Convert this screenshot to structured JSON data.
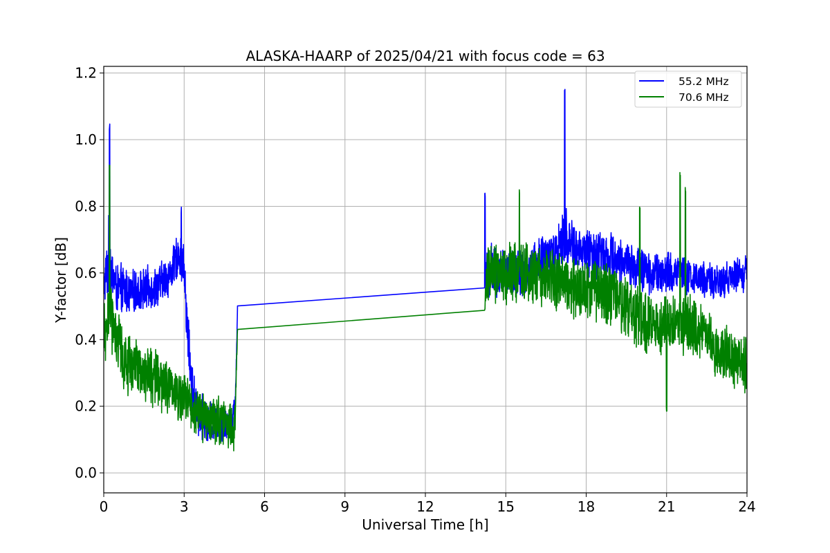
{
  "chart_data": {
    "type": "line",
    "title": "ALASKA-HAARP of 2025/04/21 with focus code = 63",
    "xlabel": "Universal Time [h]",
    "ylabel": "Y-factor [dB]",
    "xlim": [
      0,
      24
    ],
    "ylim": [
      -0.06,
      1.22
    ],
    "xticks": [
      0,
      3,
      6,
      9,
      12,
      15,
      18,
      21,
      24
    ],
    "yticks": [
      0.0,
      0.2,
      0.4,
      0.6,
      0.8,
      1.0,
      1.2
    ],
    "xtick_labels": [
      "0",
      "3",
      "6",
      "9",
      "12",
      "15",
      "18",
      "21",
      "24"
    ],
    "ytick_labels": [
      "0.0",
      "0.2",
      "0.4",
      "0.6",
      "0.8",
      "1.0",
      "1.2"
    ],
    "grid": true,
    "legend_position": "top-right",
    "series": [
      {
        "name": "55.2 MHz",
        "color": "#0000ff",
        "x": [
          0,
          0.1,
          0.2,
          0.3,
          0.5,
          0.8,
          1.0,
          1.5,
          2.0,
          2.5,
          2.8,
          3.0,
          3.1,
          3.3,
          3.5,
          4.0,
          4.5,
          4.9,
          5.0,
          14.2,
          14.3,
          14.5,
          15.0,
          15.5,
          16.0,
          16.5,
          17.0,
          17.2,
          17.5,
          18.0,
          18.5,
          19.0,
          19.5,
          20.0,
          20.5,
          21.0,
          21.5,
          22.0,
          22.5,
          23.0,
          23.5,
          24.0
        ],
        "y": [
          0.55,
          0.6,
          0.65,
          0.6,
          0.55,
          0.55,
          0.54,
          0.55,
          0.56,
          0.6,
          0.66,
          0.62,
          0.45,
          0.25,
          0.18,
          0.15,
          0.15,
          0.17,
          0.53,
          0.555,
          0.62,
          0.6,
          0.6,
          0.6,
          0.62,
          0.65,
          0.68,
          0.72,
          0.68,
          0.66,
          0.66,
          0.65,
          0.63,
          0.61,
          0.6,
          0.6,
          0.6,
          0.58,
          0.58,
          0.57,
          0.59,
          0.6
        ],
        "amp": [
          0.06,
          0.08,
          0.12,
          0.08,
          0.07,
          0.07,
          0.06,
          0.06,
          0.06,
          0.06,
          0.06,
          0.07,
          0.09,
          0.07,
          0.06,
          0.06,
          0.06,
          0.06,
          0,
          0,
          0.08,
          0.08,
          0.07,
          0.07,
          0.07,
          0.07,
          0.07,
          0.1,
          0.07,
          0.07,
          0.07,
          0.07,
          0.06,
          0.06,
          0.06,
          0.06,
          0.05,
          0.05,
          0.05,
          0.05,
          0.05,
          0.05
        ],
        "gap": [
          5.0,
          14.2
        ],
        "spikes": [
          [
            0.22,
            1.05
          ],
          [
            17.2,
            1.16
          ],
          [
            14.22,
            0.84
          ],
          [
            2.9,
            0.8
          ]
        ]
      },
      {
        "name": "70.6 MHz",
        "color": "#008000",
        "x": [
          0,
          0.1,
          0.2,
          0.3,
          0.5,
          0.8,
          1.0,
          1.5,
          2.0,
          2.5,
          3.0,
          3.5,
          4.0,
          4.5,
          4.9,
          5.0,
          14.2,
          14.3,
          15.0,
          15.5,
          16.0,
          16.5,
          17.0,
          17.5,
          18.0,
          18.5,
          19.0,
          19.5,
          20.0,
          20.5,
          21.0,
          21.5,
          22.0,
          22.5,
          23.0,
          23.5,
          24.0
        ],
        "y": [
          0.4,
          0.42,
          0.5,
          0.45,
          0.38,
          0.34,
          0.32,
          0.3,
          0.28,
          0.25,
          0.22,
          0.18,
          0.16,
          0.15,
          0.14,
          0.46,
          0.475,
          0.6,
          0.6,
          0.6,
          0.6,
          0.59,
          0.58,
          0.56,
          0.55,
          0.55,
          0.53,
          0.5,
          0.47,
          0.44,
          0.44,
          0.45,
          0.44,
          0.4,
          0.36,
          0.34,
          0.32
        ],
        "amp": [
          0.09,
          0.1,
          0.12,
          0.1,
          0.09,
          0.09,
          0.08,
          0.08,
          0.08,
          0.08,
          0.07,
          0.07,
          0.07,
          0.07,
          0.07,
          0,
          0,
          0.09,
          0.09,
          0.09,
          0.09,
          0.09,
          0.09,
          0.09,
          0.09,
          0.09,
          0.09,
          0.09,
          0.09,
          0.09,
          0.09,
          0.09,
          0.09,
          0.08,
          0.08,
          0.08,
          0.08
        ],
        "gap": [
          5.0,
          14.2
        ],
        "spikes": [
          [
            0.22,
            0.93
          ],
          [
            21.5,
            0.91
          ],
          [
            21.7,
            0.86
          ],
          [
            20.0,
            0.81
          ],
          [
            15.5,
            0.85
          ],
          [
            21.0,
            0.2
          ]
        ]
      }
    ]
  }
}
